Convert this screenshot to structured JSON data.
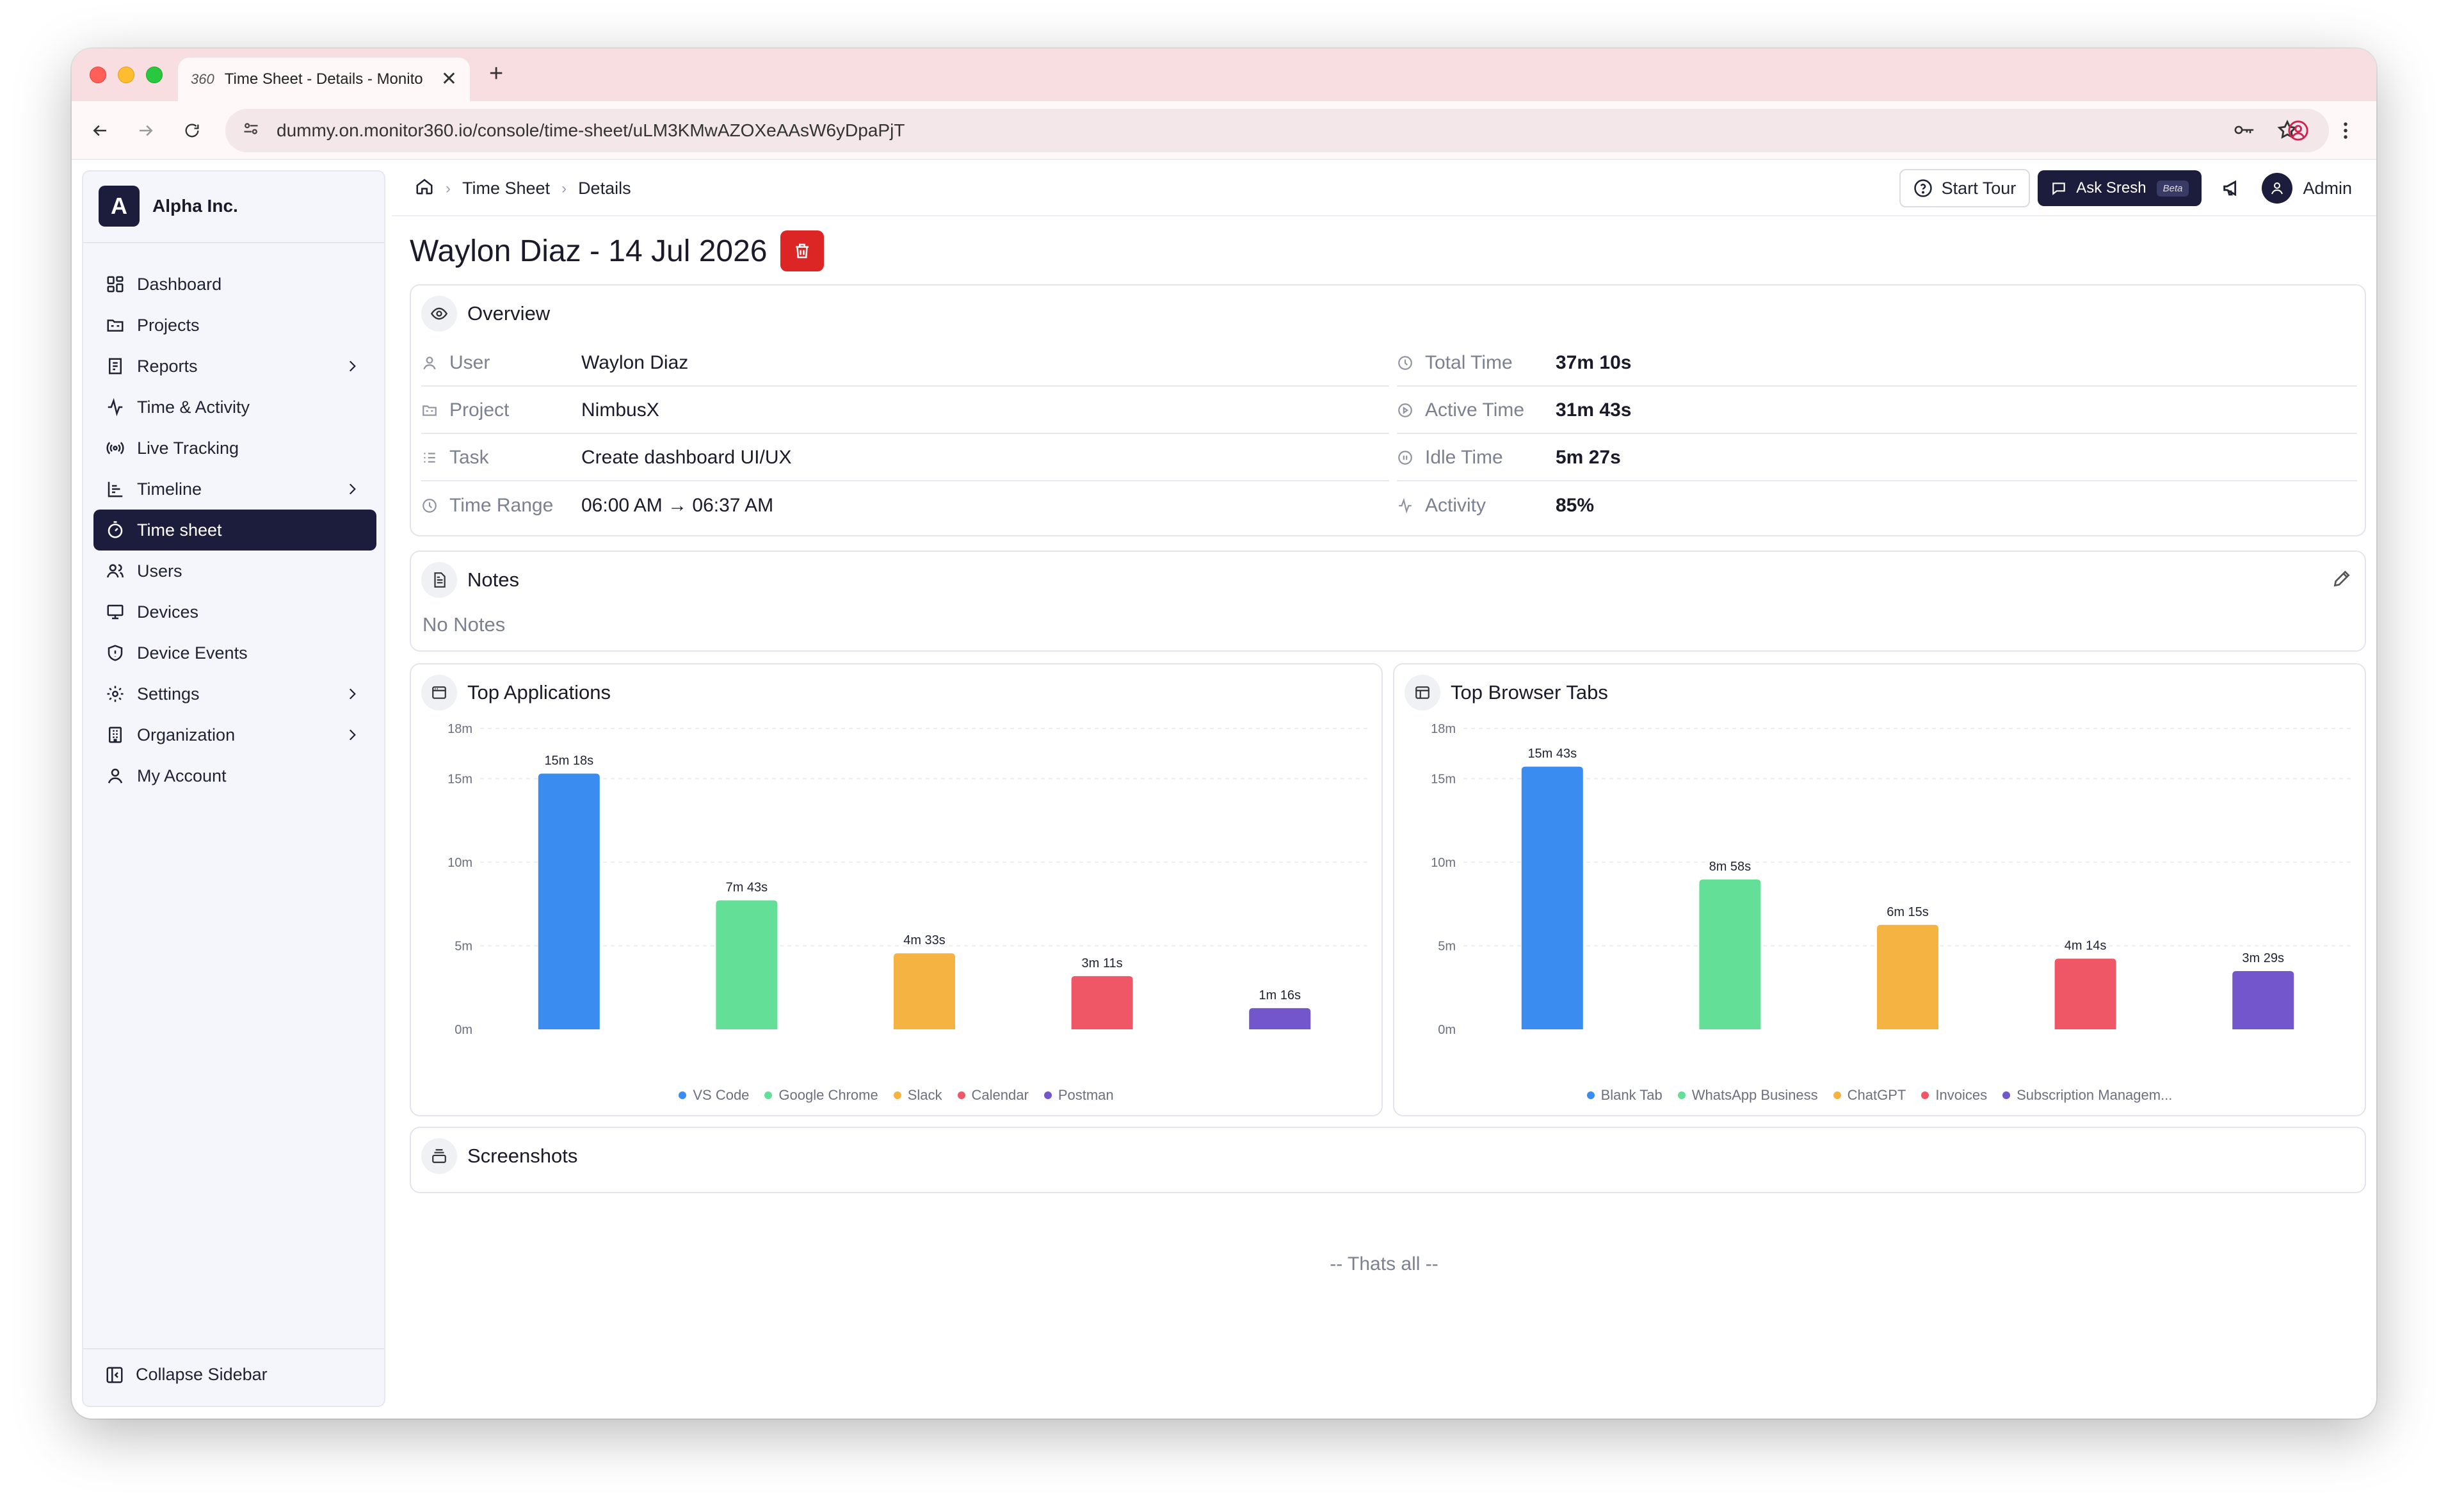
{
  "browser": {
    "tab_title": "Time Sheet - Details - Monito",
    "tab_close": "✕",
    "new_tab": "+",
    "url": "dummy.on.monitor360.io/console/time-sheet/uLM3KMwAZOXeAAsW6yDpaPjT"
  },
  "sidebar": {
    "org_initial": "A",
    "org_name": "Alpha Inc.",
    "items": [
      {
        "label": "Dashboard",
        "icon": "dashboard-icon",
        "has_chevron": false,
        "active": false
      },
      {
        "label": "Projects",
        "icon": "folder-icon",
        "has_chevron": false,
        "active": false
      },
      {
        "label": "Reports",
        "icon": "report-icon",
        "has_chevron": true,
        "active": false
      },
      {
        "label": "Time & Activity",
        "icon": "activity-icon",
        "has_chevron": false,
        "active": false
      },
      {
        "label": "Live Tracking",
        "icon": "broadcast-icon",
        "has_chevron": false,
        "active": false
      },
      {
        "label": "Timeline",
        "icon": "timeline-icon",
        "has_chevron": true,
        "active": false
      },
      {
        "label": "Time sheet",
        "icon": "stopwatch-icon",
        "has_chevron": false,
        "active": true
      },
      {
        "label": "Users",
        "icon": "users-icon",
        "has_chevron": false,
        "active": false
      },
      {
        "label": "Devices",
        "icon": "monitor-icon",
        "has_chevron": false,
        "active": false
      },
      {
        "label": "Device Events",
        "icon": "shield-icon",
        "has_chevron": false,
        "active": false
      },
      {
        "label": "Settings",
        "icon": "gear-icon",
        "has_chevron": true,
        "active": false
      },
      {
        "label": "Organization",
        "icon": "building-icon",
        "has_chevron": true,
        "active": false
      },
      {
        "label": "My Account",
        "icon": "user-icon",
        "has_chevron": false,
        "active": false
      }
    ],
    "collapse_label": "Collapse Sidebar"
  },
  "header": {
    "breadcrumb": [
      "Time Sheet",
      "Details"
    ],
    "start_tour": "Start Tour",
    "ask": "Ask Sresh",
    "beta": "Beta",
    "admin": "Admin"
  },
  "page": {
    "title": "Waylon Diaz - 14 Jul 2026"
  },
  "overview": {
    "title": "Overview",
    "left": [
      {
        "label": "User",
        "value": "Waylon Diaz",
        "icon": "user-icon"
      },
      {
        "label": "Project",
        "value": "NimbusX",
        "icon": "folder-icon"
      },
      {
        "label": "Task",
        "value": "Create dashboard UI/UX",
        "icon": "checklist-icon"
      },
      {
        "label": "Time Range",
        "value": "06:00 AM → 06:37 AM",
        "icon": "clock-icon"
      }
    ],
    "right": [
      {
        "label": "Total Time",
        "value": "37m 10s",
        "icon": "clock-icon"
      },
      {
        "label": "Active Time",
        "value": "31m 43s",
        "icon": "play-circle-icon"
      },
      {
        "label": "Idle Time",
        "value": "5m 27s",
        "icon": "pause-circle-icon"
      },
      {
        "label": "Activity",
        "value": "85%",
        "icon": "activity-icon"
      }
    ]
  },
  "notes": {
    "title": "Notes",
    "empty": "No Notes"
  },
  "apps_chart": {
    "title": "Top Applications"
  },
  "tabs_chart": {
    "title": "Top Browser Tabs"
  },
  "chart_data": [
    {
      "type": "bar",
      "title": "Top Applications",
      "categories": [
        "VS Code",
        "Google Chrome",
        "Slack",
        "Calendar",
        "Postman"
      ],
      "values": [
        918,
        463,
        273,
        191,
        76
      ],
      "value_unit": "seconds",
      "data_labels": [
        "15m 18s",
        "7m 43s",
        "4m 33s",
        "3m 11s",
        "1m 16s"
      ],
      "colors": [
        "#3b8cf0",
        "#63df97",
        "#f5b342",
        "#ef5766",
        "#7356cc"
      ],
      "ylim": [
        0,
        1080
      ],
      "y_ticks": [
        0,
        300,
        600,
        900,
        1080
      ],
      "y_tick_labels": [
        "0m",
        "5m",
        "10m",
        "15m",
        "18m"
      ],
      "grid": true,
      "legend": "bottom-center"
    },
    {
      "type": "bar",
      "title": "Top Browser Tabs",
      "categories": [
        "Blank Tab",
        "WhatsApp Business",
        "ChatGPT",
        "Invoices",
        "Subscription Managem..."
      ],
      "values": [
        943,
        538,
        375,
        254,
        209
      ],
      "value_unit": "seconds",
      "data_labels": [
        "15m 43s",
        "8m 58s",
        "6m 15s",
        "4m 14s",
        "3m 29s"
      ],
      "colors": [
        "#3b8cf0",
        "#63df97",
        "#f5b342",
        "#ef5766",
        "#7356cc"
      ],
      "ylim": [
        0,
        1080
      ],
      "y_ticks": [
        0,
        300,
        600,
        900,
        1080
      ],
      "y_tick_labels": [
        "0m",
        "5m",
        "10m",
        "15m",
        "18m"
      ],
      "grid": true,
      "legend": "bottom-center"
    }
  ],
  "screenshots": {
    "title": "Screenshots"
  },
  "footer": {
    "thats_all": "-- Thats all --"
  }
}
